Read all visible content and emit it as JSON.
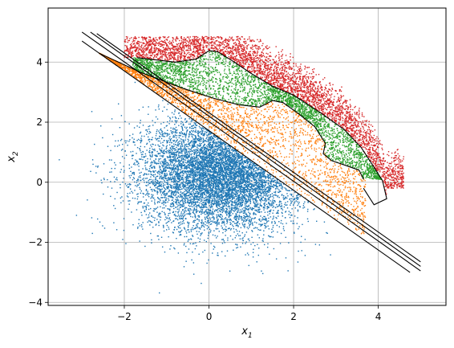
{
  "chart_data": {
    "type": "scatter",
    "title": "",
    "xlabel": "x",
    "xlabel_sub": "1",
    "ylabel": "x",
    "ylabel_sub": "2",
    "xlim": [
      -3.8,
      5.6
    ],
    "ylim": [
      -4.1,
      5.8
    ],
    "xticks": [
      -2,
      0,
      2,
      4
    ],
    "yticks": [
      -4,
      -2,
      0,
      2,
      4
    ],
    "xtick_labels": [
      "−2",
      "0",
      "2",
      "4"
    ],
    "ytick_labels": [
      "−4",
      "−2",
      "0",
      "2",
      "4"
    ],
    "grid": true,
    "series": [
      {
        "color": "#1f77b4",
        "marker": "dot",
        "distribution": {
          "kind": "gaussian",
          "mean": [
            0.3,
            0.3
          ],
          "std": [
            0.95,
            0.95
          ],
          "bounded_above_by": "line_0"
        },
        "count": 7000
      },
      {
        "color": "#ff7f0e",
        "marker": "dot",
        "region": {
          "between": [
            "line_0",
            "curve_orange_top"
          ]
        },
        "count": 2400
      },
      {
        "color": "#2ca02c",
        "marker": "dot",
        "region": {
          "between": [
            "curve_orange_top",
            "curve_green_top"
          ]
        },
        "count": 2800
      },
      {
        "color": "#d62728",
        "marker": "dot",
        "region": {
          "between": [
            "curve_green_top",
            "outer_edge"
          ]
        },
        "count": 3600
      }
    ],
    "boundaries": [
      {
        "name": "line_0",
        "x": [
          -3.0,
          4.75
        ],
        "y": [
          4.7,
          -3.0
        ]
      },
      {
        "name": "line_1",
        "x": [
          -3.0,
          5.0
        ],
        "y": [
          5.0,
          -2.95
        ]
      },
      {
        "name": "line_2",
        "x": [
          -2.8,
          5.0
        ],
        "y": [
          5.0,
          -2.8
        ]
      },
      {
        "name": "line_3",
        "x": [
          -2.65,
          5.0
        ],
        "y": [
          4.95,
          -2.65
        ]
      },
      {
        "name": "curve_orange_top",
        "points": [
          [
            -2.6,
            4.3
          ],
          [
            -1.6,
            3.65
          ],
          [
            -0.6,
            3.12
          ],
          [
            0.1,
            2.8
          ],
          [
            0.7,
            2.58
          ],
          [
            1.2,
            2.5
          ],
          [
            1.5,
            2.72
          ],
          [
            1.75,
            2.65
          ],
          [
            2.1,
            2.3
          ],
          [
            2.5,
            1.85
          ],
          [
            2.75,
            1.3
          ],
          [
            2.7,
            0.95
          ],
          [
            2.9,
            0.72
          ],
          [
            3.25,
            0.55
          ],
          [
            3.55,
            0.4
          ],
          [
            3.65,
            0.1
          ]
        ]
      },
      {
        "name": "curve_green_top",
        "points": [
          [
            -1.7,
            4.15
          ],
          [
            -0.8,
            4.0
          ],
          [
            -0.3,
            4.1
          ],
          [
            0.0,
            4.38
          ],
          [
            0.2,
            4.35
          ],
          [
            0.6,
            4.0
          ],
          [
            1.0,
            3.62
          ],
          [
            1.5,
            3.2
          ],
          [
            2.0,
            2.9
          ],
          [
            2.6,
            2.35
          ],
          [
            3.2,
            1.75
          ],
          [
            3.6,
            1.15
          ],
          [
            3.9,
            0.5
          ],
          [
            4.1,
            0.05
          ],
          [
            4.2,
            -0.55
          ],
          [
            3.9,
            -0.75
          ],
          [
            3.65,
            -0.2
          ]
        ]
      }
    ]
  }
}
